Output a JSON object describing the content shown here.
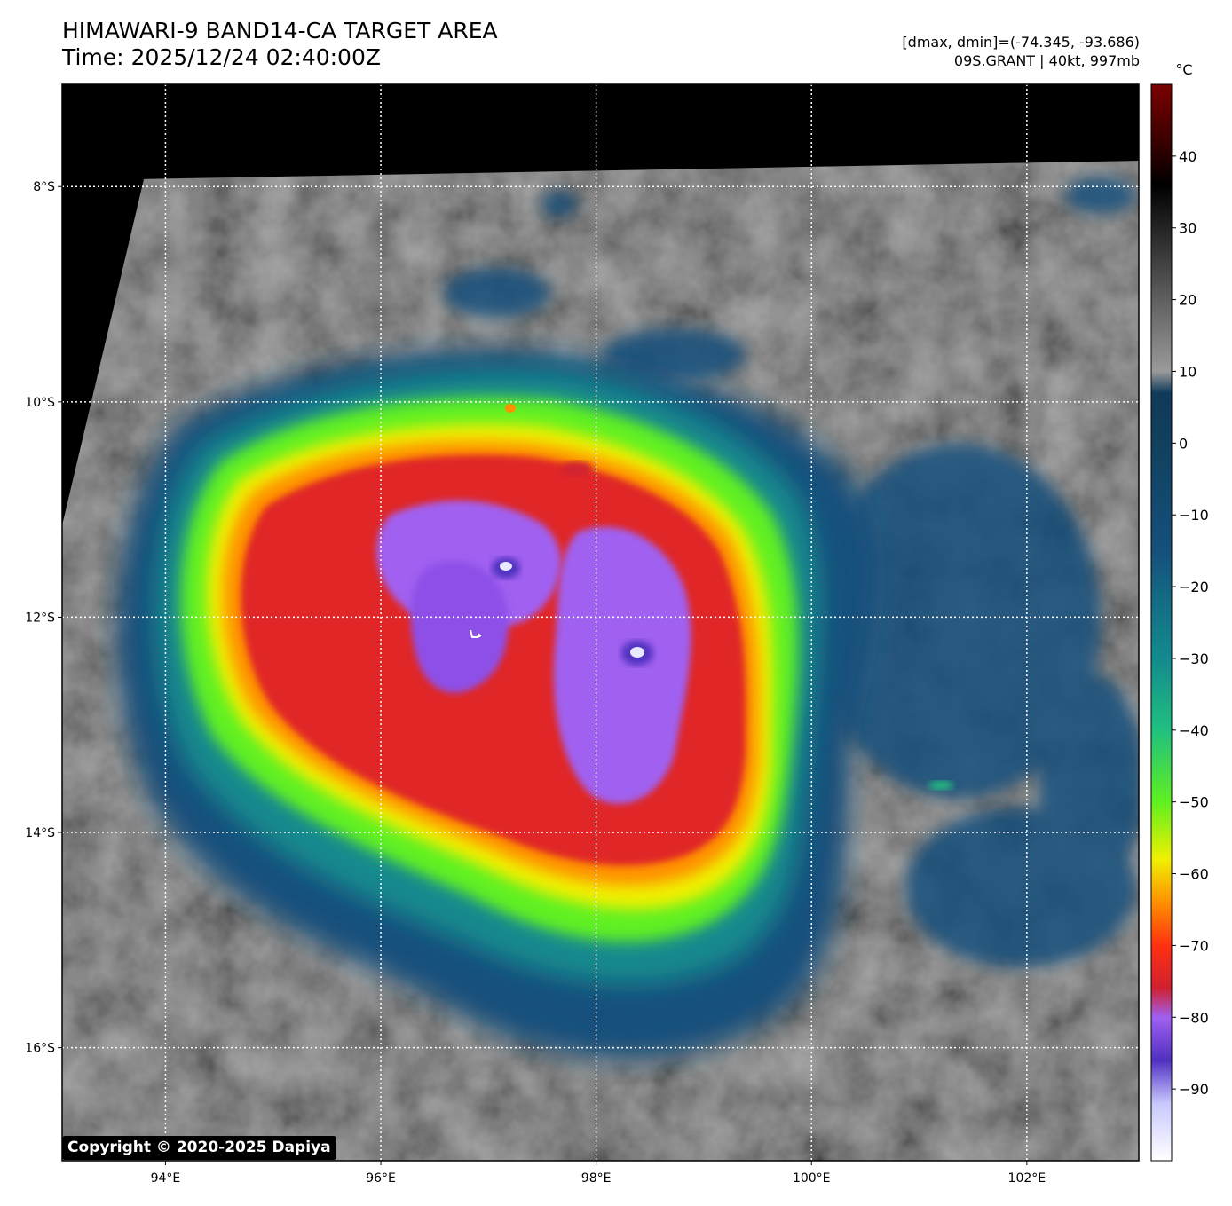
{
  "header": {
    "title": "HIMAWARI-9 BAND14-CA TARGET AREA",
    "time": "Time: 2025/12/24 02:40:00Z",
    "dminmax": "[dmax, dmin]=(-74.345, -93.686)",
    "storm": "09S.GRANT | 40kt, 997mb"
  },
  "map": {
    "lon_ticks": [
      {
        "value": 94,
        "label": "94°E"
      },
      {
        "value": 96,
        "label": "96°E"
      },
      {
        "value": 98,
        "label": "98°E"
      },
      {
        "value": 100,
        "label": "100°E"
      },
      {
        "value": 102,
        "label": "102°E"
      }
    ],
    "lat_ticks": [
      {
        "value": -8,
        "label": "8°S"
      },
      {
        "value": -10,
        "label": "10°S"
      },
      {
        "value": -12,
        "label": "12°S"
      },
      {
        "value": -14,
        "label": "14°S"
      },
      {
        "value": -16,
        "label": "16°S"
      }
    ],
    "lon_range": [
      93.04,
      103.04
    ],
    "lat_range": [
      -7.05,
      -17.05
    ],
    "grid_style": "white dotted",
    "center_marker_lonlat": [
      96.87,
      -12.18
    ]
  },
  "colorbar": {
    "unit": "°C",
    "range": [
      -100,
      50
    ],
    "ticks": [
      {
        "value": 40,
        "label": "40"
      },
      {
        "value": 30,
        "label": "30"
      },
      {
        "value": 20,
        "label": "20"
      },
      {
        "value": 10,
        "label": "10"
      },
      {
        "value": 0,
        "label": "0"
      },
      {
        "value": -10,
        "label": "−10"
      },
      {
        "value": -20,
        "label": "−20"
      },
      {
        "value": -30,
        "label": "−30"
      },
      {
        "value": -40,
        "label": "−40"
      },
      {
        "value": -50,
        "label": "−50"
      },
      {
        "value": -60,
        "label": "−60"
      },
      {
        "value": -70,
        "label": "−70"
      },
      {
        "value": -80,
        "label": "−80"
      },
      {
        "value": -90,
        "label": "−90"
      }
    ],
    "stops": [
      {
        "value": 50,
        "color": "#7a0000"
      },
      {
        "value": 42,
        "color": "#3a0000"
      },
      {
        "value": 36,
        "color": "#000000"
      },
      {
        "value": 10,
        "color": "#9a9a9a"
      },
      {
        "value": 7,
        "color": "#0f3a5a"
      },
      {
        "value": 0,
        "color": "#10405e"
      },
      {
        "value": -15,
        "color": "#14507c"
      },
      {
        "value": -30,
        "color": "#138a8e"
      },
      {
        "value": -40,
        "color": "#20c080"
      },
      {
        "value": -50,
        "color": "#60f020"
      },
      {
        "value": -58,
        "color": "#f0f000"
      },
      {
        "value": -64,
        "color": "#ff9000"
      },
      {
        "value": -70,
        "color": "#ff3010"
      },
      {
        "value": -76,
        "color": "#d02030"
      },
      {
        "value": -80,
        "color": "#a060f0"
      },
      {
        "value": -86,
        "color": "#5030c0"
      },
      {
        "value": -92,
        "color": "#c8c8ff"
      },
      {
        "value": -100,
        "color": "#ffffff"
      }
    ]
  },
  "footer": {
    "copyright": "Copyright © 2020-2025 Dapiya"
  }
}
